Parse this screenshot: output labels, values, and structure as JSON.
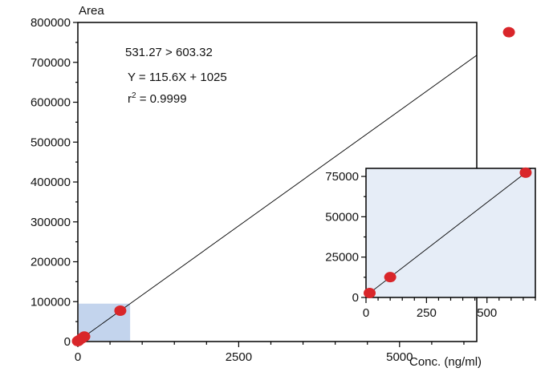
{
  "chart_data": [
    {
      "type": "scatter",
      "ylabel": "Area",
      "xlabel": "Conc. (ng/ml)",
      "xlim": [
        0,
        6200
      ],
      "ylim": [
        0,
        800000
      ],
      "x_ticks": [
        0,
        2500,
        5000
      ],
      "x_tick_labels": [
        "0",
        "2500",
        "5000"
      ],
      "y_ticks": [
        0,
        100000,
        200000,
        300000,
        400000,
        500000,
        600000,
        700000,
        800000
      ],
      "y_tick_labels": [
        "0",
        "100000",
        "200000",
        "300000",
        "400000",
        "500000",
        "600000",
        "700000",
        "800000"
      ],
      "annotations": [
        "531.27 > 603.32",
        "Y = 115.6X + 1025",
        "r",
        "2",
        " = 0.9999"
      ],
      "fit": {
        "slope": 115.6,
        "intercept": 1025
      },
      "series": [
        {
          "x": [
            0,
            15,
            60,
            100,
            660,
            6700
          ],
          "y": [
            1025,
            2760,
            7960,
            12585,
            77321,
            775545
          ]
        }
      ],
      "highlight_region": {
        "x": [
          0,
          800
        ],
        "y": [
          0,
          95000
        ]
      },
      "colors": {
        "point": "#d9262a",
        "highlight": "#b9cdea",
        "line": "#000000"
      }
    },
    {
      "type": "scatter",
      "xlim": [
        0,
        700
      ],
      "ylim": [
        0,
        80000
      ],
      "x_ticks": [
        0,
        250,
        500
      ],
      "x_tick_labels": [
        "0",
        "250",
        "500"
      ],
      "y_ticks": [
        0,
        25000,
        50000,
        75000
      ],
      "y_tick_labels": [
        "0",
        "25000",
        "50000",
        "75000"
      ],
      "fit": {
        "slope": 115.6,
        "intercept": 1025
      },
      "series": [
        {
          "x": [
            15,
            100,
            660
          ],
          "y": [
            2760,
            12585,
            77321
          ]
        }
      ],
      "colors": {
        "point": "#d9262a",
        "background": "#e6edf7",
        "line": "#000000"
      }
    }
  ]
}
